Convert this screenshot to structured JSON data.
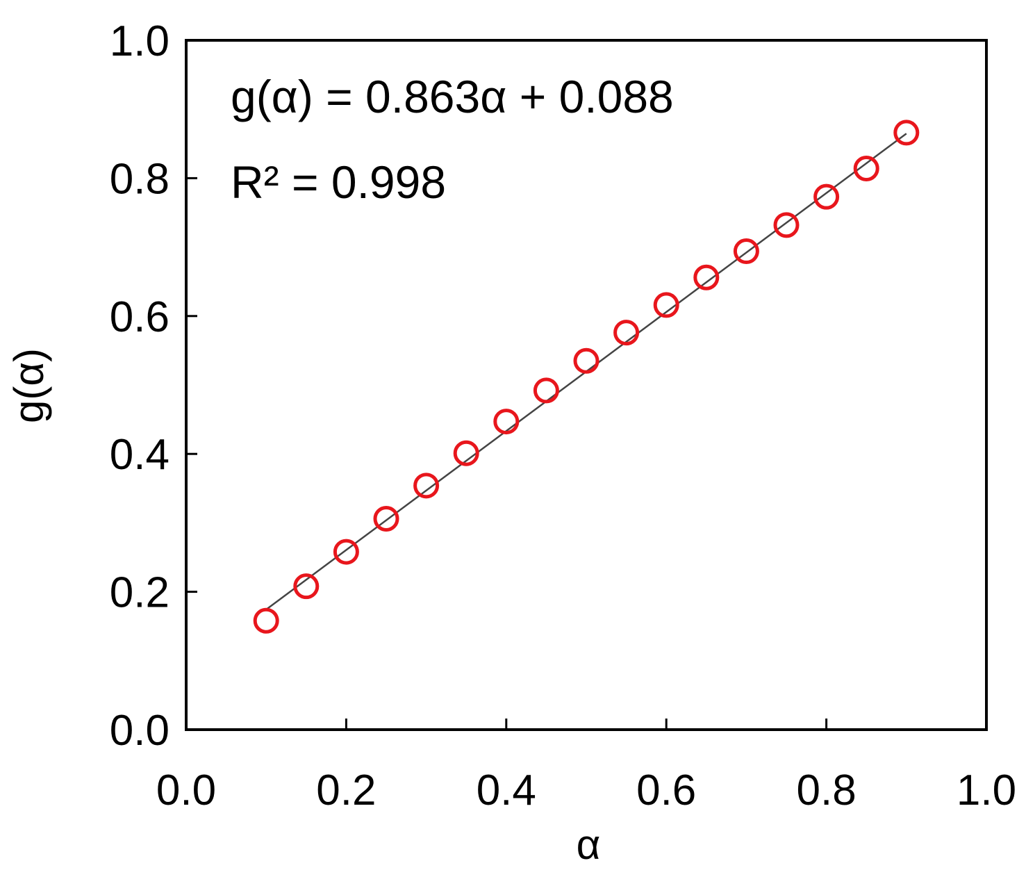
{
  "chart_data": {
    "type": "scatter",
    "title": "",
    "xlabel": "α",
    "ylabel": "g(α)",
    "xlim": [
      0.0,
      1.0
    ],
    "ylim": [
      0.0,
      1.0
    ],
    "xticks": [
      "0.0",
      "0.2",
      "0.4",
      "0.6",
      "0.8",
      "1.0"
    ],
    "yticks": [
      "0.0",
      "0.2",
      "0.4",
      "0.6",
      "0.8",
      "1.0"
    ],
    "grid": false,
    "legend": "none",
    "annotations": [
      "g(α) = 0.863α + 0.088",
      "R² = 0.998"
    ],
    "fit": {
      "slope": 0.863,
      "intercept": 0.088,
      "x_range": [
        0.1,
        0.9
      ]
    },
    "series": [
      {
        "marker": "open-circle",
        "color": "#e8161c",
        "x": [
          0.1,
          0.15,
          0.2,
          0.25,
          0.3,
          0.35,
          0.4,
          0.45,
          0.5,
          0.55,
          0.6,
          0.65,
          0.7,
          0.75,
          0.8,
          0.85,
          0.9
        ],
        "y": [
          0.158,
          0.208,
          0.258,
          0.306,
          0.354,
          0.401,
          0.447,
          0.492,
          0.535,
          0.576,
          0.616,
          0.656,
          0.694,
          0.732,
          0.773,
          0.814,
          0.866
        ]
      }
    ],
    "fit_color": "#444444",
    "axis_color": "#000000"
  }
}
